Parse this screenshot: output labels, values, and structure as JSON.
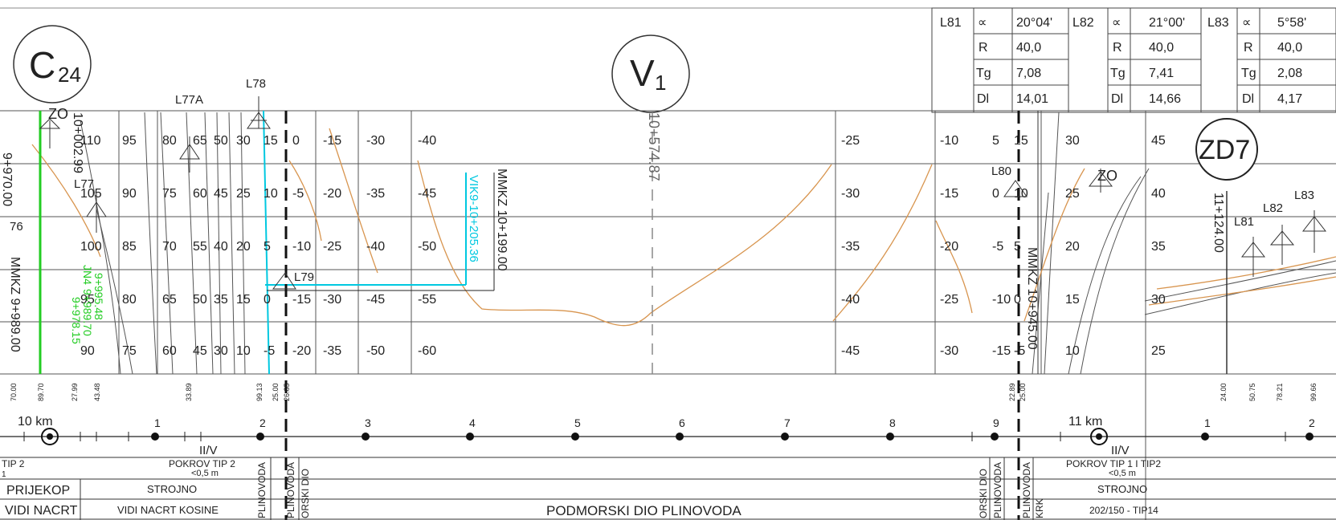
{
  "markers": {
    "c24": {
      "letter": "C",
      "sub": "24"
    },
    "v1": {
      "letter": "V",
      "sub": "1"
    },
    "zd7": {
      "label": "ZD7"
    }
  },
  "curve_table": [
    {
      "name": "L81",
      "alpha": "20°04'",
      "R": "40,0",
      "Tg": "7,08",
      "Dl": "14,01"
    },
    {
      "name": "L82",
      "alpha": "21°00'",
      "R": "40,0",
      "Tg": "7,41",
      "Dl": "14,66"
    },
    {
      "name": "L83",
      "alpha": "5°58'",
      "R": "40,0",
      "Tg": "2,08",
      "Dl": "4,17"
    }
  ],
  "curve_table_headers": {
    "alpha": "∝",
    "R": "R",
    "Tg": "Tg",
    "Dl": "Dl"
  },
  "labels": {
    "l78": "L78",
    "l77a": "L77A",
    "l77": "L77",
    "l79": "L79",
    "l80": "L80",
    "l81": "L81",
    "l82": "L82",
    "l83": "L83",
    "zo": "ZO",
    "zo2": "ZO",
    "n76": "76",
    "st_left1": "10+002.99",
    "st_left2": "9+970.00",
    "st_mmkz_left": "MMKZ 9+989.00",
    "st_green1": "9+995.48",
    "st_green2": "9+989.70",
    "st_green3": "9+978.15",
    "st_green_jn": "JN4",
    "st_vik": "VIK9-10+205.36",
    "st_mmkz_mid": "MMKZ 10+199.00",
    "st_v1": "10+574.87",
    "st_mmkz_right": "MMKZ 10+945.00",
    "st_zd7": "11+124.00"
  },
  "depths": {
    "left_a": [
      "110",
      "105",
      "100",
      "95",
      "90"
    ],
    "left_b": [
      "95",
      "90",
      "85",
      "80",
      "75"
    ],
    "left_c": [
      "80",
      "75",
      "70",
      "65",
      "60"
    ],
    "left_d": [
      "65",
      "60",
      "55",
      "50",
      "45"
    ],
    "left_e": [
      "50",
      "45",
      "40",
      "35",
      "30"
    ],
    "left_f": [
      "30",
      "25",
      "20",
      "15",
      "10"
    ],
    "col1": [
      "15",
      "10",
      "5",
      "0",
      "-5"
    ],
    "col2": [
      "0",
      "-5",
      "-10",
      "-15",
      "-20"
    ],
    "col3": [
      "-15",
      "-20",
      "-25",
      "-30",
      "-35"
    ],
    "col4": [
      "-30",
      "-35",
      "-40",
      "-45",
      "-50"
    ],
    "col5": [
      "-40",
      "-45",
      "-50",
      "-55",
      "-60"
    ],
    "col6": [
      "-25",
      "-30",
      "-35",
      "-40",
      "-45"
    ],
    "col7": [
      "-10",
      "-15",
      "-20",
      "-25",
      "-30"
    ],
    "col8": [
      "5",
      "0",
      "-5",
      "-10",
      "-15"
    ],
    "col9": [
      "15",
      "10",
      "5",
      "0",
      "-5"
    ],
    "col10": [
      "30",
      "25",
      "20",
      "15",
      "10"
    ],
    "col11": [
      "45",
      "40",
      "35",
      "30",
      "25"
    ]
  },
  "tick_labels": [
    {
      "text": "70.00"
    },
    {
      "text": "89.70"
    },
    {
      "text": "27.99"
    },
    {
      "text": "43.48"
    },
    {
      "text": "33.89"
    },
    {
      "text": "99.13"
    },
    {
      "text": "25.00"
    },
    {
      "text": "26.85"
    },
    {
      "text": "22.89"
    },
    {
      "text": "25.00"
    },
    {
      "text": "24.00"
    },
    {
      "text": "50.75"
    },
    {
      "text": "78.21"
    },
    {
      "text": "99.66"
    }
  ],
  "km_axis": {
    "km10": "10 km",
    "km11": "11 km",
    "numbers": [
      "1",
      "2",
      "3",
      "4",
      "5",
      "6",
      "7",
      "8",
      "9",
      "1",
      "2"
    ]
  },
  "bands": {
    "class_left": "II/V",
    "class_right": "II/V",
    "tip_left": "TIP 2",
    "tip_left2": "1",
    "cover_left": "POKROV TIP 2",
    "cover_left_sub": "<0,5 m",
    "cover_right": "POKROV TIP 1 I TIP2",
    "cover_right_sub": "<0,5 m",
    "cut": "PRIJEKOP",
    "method_left": "STROJNO",
    "method_right": "STROJNO",
    "plan": "VIDI NACRT",
    "plan_slope": "VIDI NACRT KOSINE",
    "undersea": "PODMORSKI DIO PLINOVODA",
    "spec_right": "202/150 - TIP14",
    "vert1": "PLINOVODA",
    "vert2": "PLINOVODA",
    "vert3": "ORSKI DIO",
    "vert4": "ORSKI DIO",
    "vert5": "PLINOVODA",
    "vert6": "PLINOVODA",
    "vert7": "KRK"
  },
  "colors": {
    "line": "#222222",
    "terrain": "#d8954f",
    "pipe": "#00c8e0",
    "green": "#22cc22",
    "grid": "#555555"
  }
}
